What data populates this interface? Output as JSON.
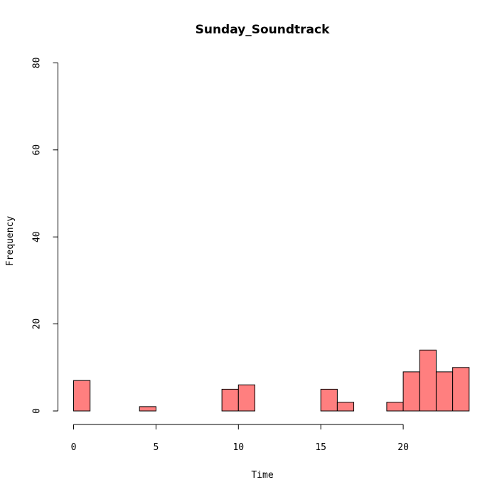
{
  "chart_data": {
    "type": "bar",
    "title": "Sunday_Soundtrack",
    "xlabel": "Time",
    "ylabel": "Frequency",
    "bin_width": 1,
    "bins": [
      {
        "start": 0,
        "end": 1,
        "count": 7
      },
      {
        "start": 1,
        "end": 2,
        "count": 0
      },
      {
        "start": 2,
        "end": 3,
        "count": 0
      },
      {
        "start": 3,
        "end": 4,
        "count": 0
      },
      {
        "start": 4,
        "end": 5,
        "count": 1
      },
      {
        "start": 5,
        "end": 6,
        "count": 0
      },
      {
        "start": 6,
        "end": 7,
        "count": 0
      },
      {
        "start": 7,
        "end": 8,
        "count": 0
      },
      {
        "start": 8,
        "end": 9,
        "count": 0
      },
      {
        "start": 9,
        "end": 10,
        "count": 5
      },
      {
        "start": 10,
        "end": 11,
        "count": 6
      },
      {
        "start": 11,
        "end": 12,
        "count": 0
      },
      {
        "start": 12,
        "end": 13,
        "count": 0
      },
      {
        "start": 13,
        "end": 14,
        "count": 0
      },
      {
        "start": 14,
        "end": 15,
        "count": 0
      },
      {
        "start": 15,
        "end": 16,
        "count": 5
      },
      {
        "start": 16,
        "end": 17,
        "count": 2
      },
      {
        "start": 17,
        "end": 18,
        "count": 0
      },
      {
        "start": 18,
        "end": 19,
        "count": 0
      },
      {
        "start": 19,
        "end": 20,
        "count": 2
      },
      {
        "start": 20,
        "end": 21,
        "count": 9
      },
      {
        "start": 21,
        "end": 22,
        "count": 14
      },
      {
        "start": 22,
        "end": 23,
        "count": 9
      },
      {
        "start": 23,
        "end": 24,
        "count": 10
      }
    ],
    "xlim": [
      0,
      24
    ],
    "ylim": [
      0,
      80
    ],
    "xticks": [
      0,
      5,
      10,
      15,
      20
    ],
    "yticks": [
      0,
      20,
      40,
      60,
      80
    ],
    "bar_color": "#FF7F7F",
    "grid": false
  }
}
